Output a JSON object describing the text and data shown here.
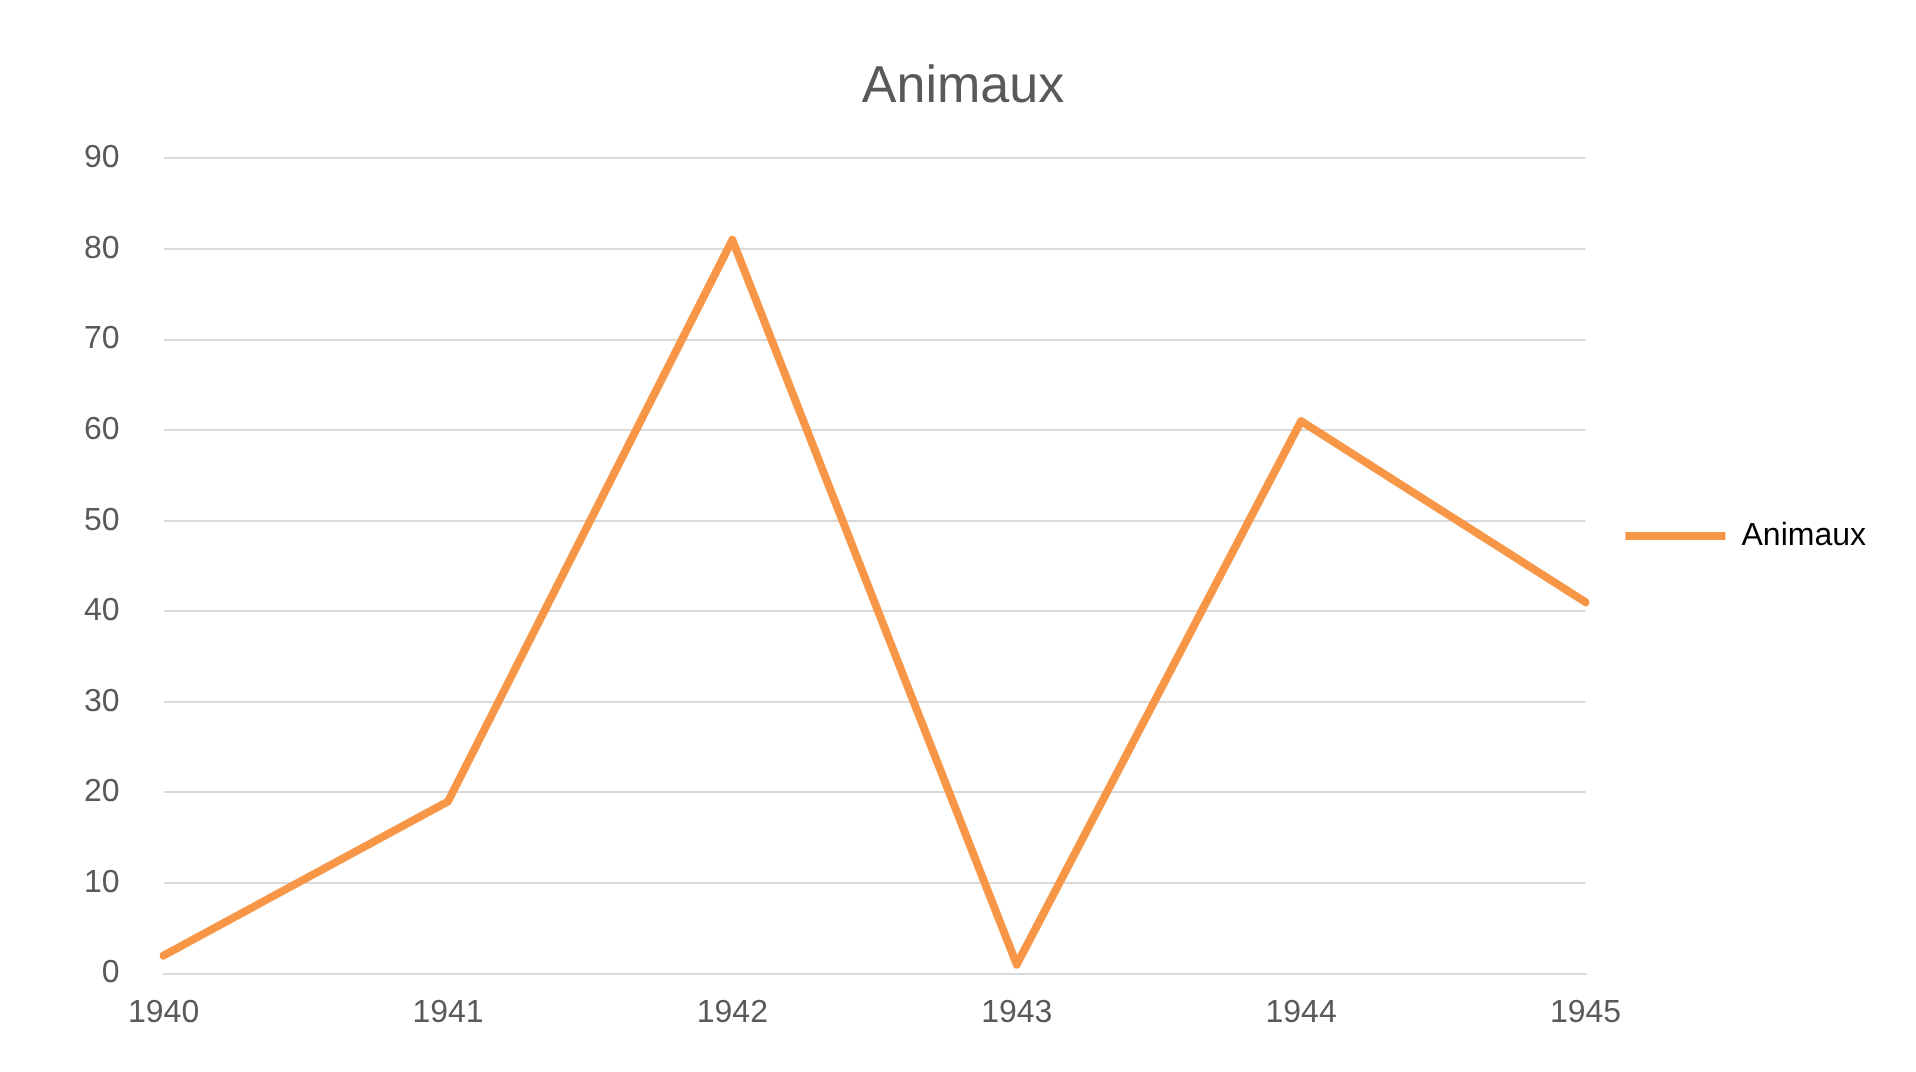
{
  "chart_data": {
    "type": "line",
    "title": "Animaux",
    "categories": [
      "1940",
      "1941",
      "1942",
      "1943",
      "1944",
      "1945"
    ],
    "series": [
      {
        "name": "Animaux",
        "color": "#f79646",
        "values": [
          2,
          19,
          81,
          1,
          61,
          41
        ]
      }
    ],
    "ylim": [
      0,
      90
    ],
    "yticks": [
      0,
      10,
      20,
      30,
      40,
      50,
      60,
      70,
      80,
      90
    ],
    "grid": "y",
    "legend": "right",
    "marker": "none",
    "line_style": "solid"
  }
}
